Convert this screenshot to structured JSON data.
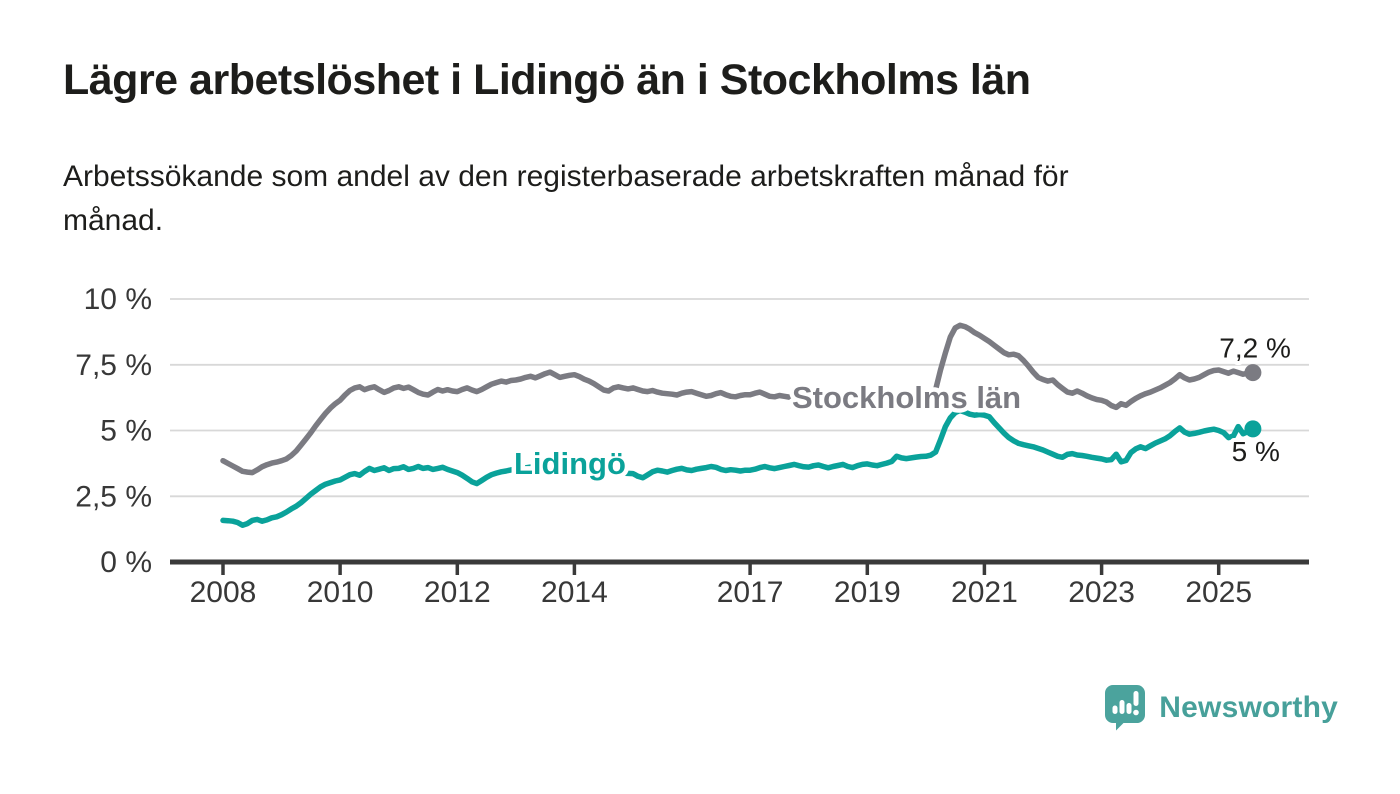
{
  "header": {
    "title": "Lägre arbetslöshet i Lidingö än i Stockholms län",
    "subtitle_lines": [
      "Arbetssökande som andel av den registerbaserade arbetskraften månad för",
      "månad."
    ]
  },
  "footer": {
    "brand": "Newsworthy",
    "brand_color": "#47a09a"
  },
  "chart_data": {
    "type": "line",
    "x_start": "2008-01",
    "x_end": "2025-08",
    "x_interval": "monthly",
    "x_ticks": [
      2008,
      2010,
      2012,
      2014,
      2017,
      2019,
      2021,
      2023,
      2025
    ],
    "y_ticks": [
      "0 %",
      "2,5 %",
      "5 %",
      "7,5 %",
      "10 %"
    ],
    "y_tick_values": [
      0,
      2.5,
      5,
      7.5,
      10
    ],
    "ylim": [
      0,
      10
    ],
    "grid": true,
    "legend": "inline-labels",
    "series": [
      {
        "name": "Stockholms län",
        "color": "#7b7b82",
        "end_label": "7,2 %",
        "end_value": 7.2,
        "values": [
          3.85,
          3.75,
          3.65,
          3.55,
          3.45,
          3.42,
          3.4,
          3.5,
          3.62,
          3.7,
          3.76,
          3.8,
          3.85,
          3.92,
          4.05,
          4.22,
          4.45,
          4.68,
          4.92,
          5.18,
          5.42,
          5.65,
          5.85,
          6.02,
          6.15,
          6.35,
          6.52,
          6.62,
          6.66,
          6.55,
          6.62,
          6.66,
          6.55,
          6.45,
          6.52,
          6.62,
          6.66,
          6.6,
          6.65,
          6.55,
          6.45,
          6.38,
          6.35,
          6.46,
          6.56,
          6.5,
          6.55,
          6.5,
          6.48,
          6.56,
          6.62,
          6.54,
          6.48,
          6.56,
          6.66,
          6.76,
          6.82,
          6.88,
          6.84,
          6.9,
          6.92,
          6.96,
          7.02,
          7.06,
          7.0,
          7.08,
          7.16,
          7.22,
          7.12,
          7.02,
          7.06,
          7.1,
          7.12,
          7.05,
          6.95,
          6.88,
          6.78,
          6.66,
          6.54,
          6.5,
          6.62,
          6.66,
          6.62,
          6.58,
          6.62,
          6.56,
          6.5,
          6.48,
          6.52,
          6.46,
          6.42,
          6.4,
          6.38,
          6.35,
          6.42,
          6.46,
          6.48,
          6.42,
          6.36,
          6.3,
          6.33,
          6.4,
          6.44,
          6.36,
          6.3,
          6.28,
          6.33,
          6.36,
          6.36,
          6.42,
          6.46,
          6.38,
          6.3,
          6.28,
          6.33,
          6.3,
          6.27,
          6.24,
          6.21,
          6.18,
          6.16,
          6.12,
          6.08,
          6.03,
          5.98,
          5.96,
          6.02,
          6.06,
          6.0,
          6.04,
          6.08,
          6.1,
          6.12,
          6.1,
          6.07,
          6.04,
          6.08,
          6.12,
          6.16,
          6.12,
          6.09,
          6.14,
          6.18,
          6.22,
          6.26,
          6.32,
          6.55,
          7.3,
          7.95,
          8.55,
          8.9,
          9.0,
          8.95,
          8.85,
          8.72,
          8.62,
          8.5,
          8.38,
          8.24,
          8.1,
          7.96,
          7.88,
          7.9,
          7.84,
          7.66,
          7.45,
          7.22,
          7.02,
          6.94,
          6.88,
          6.92,
          6.74,
          6.6,
          6.46,
          6.42,
          6.5,
          6.42,
          6.32,
          6.24,
          6.18,
          6.15,
          6.08,
          5.95,
          5.88,
          6.02,
          5.96,
          6.1,
          6.22,
          6.32,
          6.4,
          6.46,
          6.54,
          6.62,
          6.72,
          6.82,
          6.96,
          7.12,
          7.0,
          6.92,
          6.96,
          7.02,
          7.12,
          7.22,
          7.28,
          7.3,
          7.24,
          7.18,
          7.26,
          7.2,
          7.14,
          7.18,
          7.2
        ]
      },
      {
        "name": "Lidingö",
        "color": "#0aa29a",
        "end_label": "5 %",
        "end_value": 5.0,
        "values": [
          1.58,
          1.57,
          1.55,
          1.5,
          1.4,
          1.46,
          1.58,
          1.62,
          1.55,
          1.6,
          1.68,
          1.72,
          1.8,
          1.9,
          2.02,
          2.12,
          2.26,
          2.42,
          2.58,
          2.72,
          2.86,
          2.96,
          3.02,
          3.08,
          3.12,
          3.22,
          3.32,
          3.36,
          3.3,
          3.44,
          3.56,
          3.48,
          3.53,
          3.58,
          3.48,
          3.55,
          3.56,
          3.62,
          3.52,
          3.56,
          3.63,
          3.56,
          3.59,
          3.52,
          3.56,
          3.6,
          3.52,
          3.46,
          3.4,
          3.3,
          3.18,
          3.05,
          2.98,
          3.1,
          3.22,
          3.32,
          3.38,
          3.43,
          3.46,
          3.5,
          3.52,
          3.55,
          3.58,
          3.61,
          3.63,
          3.6,
          3.57,
          3.55,
          3.52,
          3.5,
          3.48,
          3.46,
          3.45,
          3.42,
          3.4,
          3.38,
          3.4,
          3.43,
          3.41,
          3.39,
          3.37,
          3.35,
          3.38,
          3.37,
          3.36,
          3.26,
          3.2,
          3.31,
          3.43,
          3.49,
          3.46,
          3.42,
          3.48,
          3.53,
          3.56,
          3.5,
          3.48,
          3.53,
          3.56,
          3.59,
          3.63,
          3.6,
          3.52,
          3.48,
          3.51,
          3.49,
          3.46,
          3.49,
          3.49,
          3.53,
          3.59,
          3.63,
          3.58,
          3.55,
          3.59,
          3.63,
          3.67,
          3.71,
          3.66,
          3.62,
          3.61,
          3.66,
          3.69,
          3.63,
          3.58,
          3.63,
          3.67,
          3.71,
          3.63,
          3.59,
          3.66,
          3.71,
          3.73,
          3.69,
          3.66,
          3.71,
          3.76,
          3.82,
          4.02,
          3.96,
          3.93,
          3.96,
          3.99,
          4.01,
          4.02,
          4.06,
          4.18,
          4.65,
          5.15,
          5.48,
          5.68,
          5.76,
          5.7,
          5.62,
          5.58,
          5.61,
          5.58,
          5.52,
          5.3,
          5.1,
          4.9,
          4.73,
          4.61,
          4.51,
          4.46,
          4.42,
          4.38,
          4.32,
          4.26,
          4.18,
          4.1,
          4.02,
          3.98,
          4.09,
          4.12,
          4.07,
          4.05,
          4.02,
          3.98,
          3.95,
          3.92,
          3.87,
          3.89,
          4.1,
          3.81,
          3.86,
          4.16,
          4.3,
          4.38,
          4.31,
          4.42,
          4.52,
          4.6,
          4.68,
          4.8,
          4.96,
          5.1,
          4.94,
          4.86,
          4.89,
          4.93,
          4.98,
          5.02,
          5.05,
          5.0,
          4.92,
          4.73,
          4.79,
          5.15,
          4.88,
          4.96,
          5.06
        ]
      }
    ]
  }
}
